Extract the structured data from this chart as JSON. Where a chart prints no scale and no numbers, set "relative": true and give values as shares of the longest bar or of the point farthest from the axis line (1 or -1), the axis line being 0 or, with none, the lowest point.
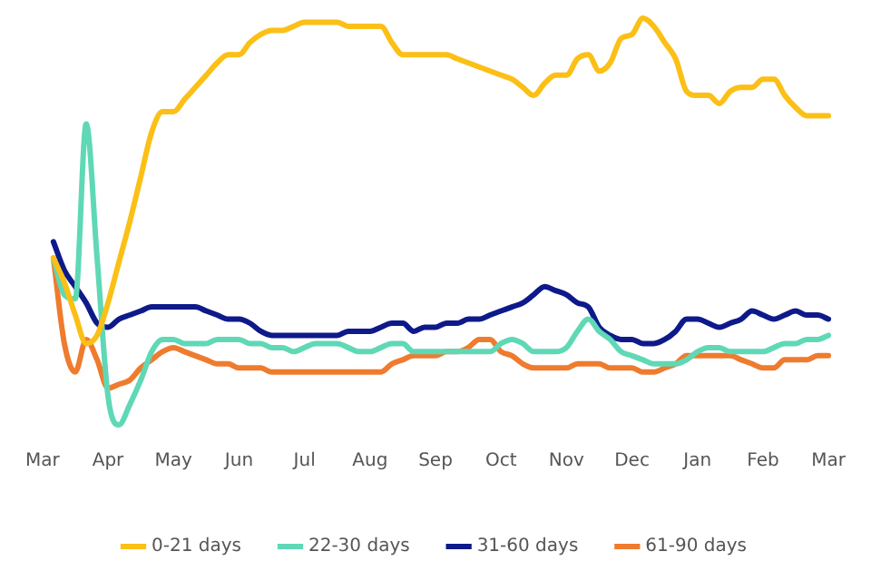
{
  "chart_data": {
    "type": "line",
    "relative": true,
    "legend": "bottom",
    "grid": false,
    "tick_labels": "x",
    "marker": "none",
    "categories": [
      "Mar",
      null,
      null,
      null,
      null,
      null,
      "Apr",
      null,
      null,
      null,
      null,
      null,
      "May",
      null,
      null,
      null,
      null,
      null,
      "Jun",
      null,
      null,
      null,
      null,
      null,
      "Jul",
      null,
      null,
      null,
      null,
      null,
      "Aug",
      null,
      null,
      null,
      null,
      null,
      "Sep",
      null,
      null,
      null,
      null,
      null,
      "Oct",
      null,
      null,
      null,
      null,
      null,
      "Nov",
      null,
      null,
      null,
      null,
      null,
      "Dec",
      null,
      null,
      null,
      null,
      null,
      "Jan",
      null,
      null,
      null,
      null,
      null,
      "Feb",
      null,
      null,
      null,
      null,
      null,
      "Mar"
    ],
    "series": [
      {
        "name": "0-21 days",
        "color": "#fbbf16",
        "values": [
          null,
          0.41,
          0.35,
          0.27,
          0.2,
          0.22,
          0.3,
          0.4,
          0.5,
          0.61,
          0.72,
          0.77,
          0.77,
          0.8,
          0.83,
          0.86,
          0.89,
          0.91,
          0.91,
          0.94,
          0.96,
          0.97,
          0.97,
          0.98,
          0.99,
          0.99,
          0.99,
          0.99,
          0.98,
          0.98,
          0.98,
          0.98,
          0.94,
          0.91,
          0.91,
          0.91,
          0.91,
          0.91,
          0.9,
          0.89,
          0.88,
          0.87,
          0.86,
          0.85,
          0.83,
          0.81,
          0.84,
          0.86,
          0.86,
          0.9,
          0.91,
          0.87,
          0.89,
          0.95,
          0.96,
          1,
          0.98,
          0.94,
          0.9,
          0.82,
          0.81,
          0.81,
          0.79,
          0.82,
          0.83,
          0.83,
          0.85,
          0.85,
          0.81,
          0.78,
          0.76,
          0.76,
          0.76
        ]
      },
      {
        "name": "22-30 days",
        "color": "#5fd8b6",
        "values": [
          null,
          0.41,
          0.32,
          0.31,
          0.74,
          0.41,
          0.07,
          0,
          0.05,
          0.11,
          0.18,
          0.21,
          0.21,
          0.2,
          0.2,
          0.2,
          0.21,
          0.21,
          0.21,
          0.2,
          0.2,
          0.19,
          0.19,
          0.18,
          0.19,
          0.2,
          0.2,
          0.2,
          0.19,
          0.18,
          0.18,
          0.19,
          0.2,
          0.2,
          0.18,
          0.18,
          0.18,
          0.18,
          0.18,
          0.18,
          0.18,
          0.18,
          0.2,
          0.21,
          0.2,
          0.18,
          0.18,
          0.18,
          0.19,
          0.23,
          0.26,
          0.23,
          0.21,
          0.18,
          0.17,
          0.16,
          0.15,
          0.15,
          0.15,
          0.16,
          0.18,
          0.19,
          0.19,
          0.18,
          0.18,
          0.18,
          0.18,
          0.19,
          0.2,
          0.2,
          0.21,
          0.21,
          0.22
        ]
      },
      {
        "name": "31-60 days",
        "color": "#0e1a8a",
        "values": [
          null,
          0.45,
          0.38,
          0.34,
          0.3,
          0.25,
          0.24,
          0.26,
          0.27,
          0.28,
          0.29,
          0.29,
          0.29,
          0.29,
          0.29,
          0.28,
          0.27,
          0.26,
          0.26,
          0.25,
          0.23,
          0.22,
          0.22,
          0.22,
          0.22,
          0.22,
          0.22,
          0.22,
          0.23,
          0.23,
          0.23,
          0.24,
          0.25,
          0.25,
          0.23,
          0.24,
          0.24,
          0.25,
          0.25,
          0.26,
          0.26,
          0.27,
          0.28,
          0.29,
          0.3,
          0.32,
          0.34,
          0.33,
          0.32,
          0.3,
          0.29,
          0.24,
          0.22,
          0.21,
          0.21,
          0.2,
          0.2,
          0.21,
          0.23,
          0.26,
          0.26,
          0.25,
          0.24,
          0.25,
          0.26,
          0.28,
          0.27,
          0.26,
          0.27,
          0.28,
          0.27,
          0.27,
          0.26
        ]
      },
      {
        "name": "61-90 days",
        "color": "#ef7b2e",
        "values": [
          null,
          0.41,
          0.2,
          0.13,
          0.21,
          0.16,
          0.09,
          0.1,
          0.11,
          0.14,
          0.16,
          0.18,
          0.19,
          0.18,
          0.17,
          0.16,
          0.15,
          0.15,
          0.14,
          0.14,
          0.14,
          0.13,
          0.13,
          0.13,
          0.13,
          0.13,
          0.13,
          0.13,
          0.13,
          0.13,
          0.13,
          0.13,
          0.15,
          0.16,
          0.17,
          0.17,
          0.17,
          0.18,
          0.18,
          0.19,
          0.21,
          0.21,
          0.18,
          0.17,
          0.15,
          0.14,
          0.14,
          0.14,
          0.14,
          0.15,
          0.15,
          0.15,
          0.14,
          0.14,
          0.14,
          0.13,
          0.13,
          0.14,
          0.15,
          0.17,
          0.17,
          0.17,
          0.17,
          0.17,
          0.16,
          0.15,
          0.14,
          0.14,
          0.16,
          0.16,
          0.16,
          0.17,
          0.17
        ]
      }
    ]
  }
}
